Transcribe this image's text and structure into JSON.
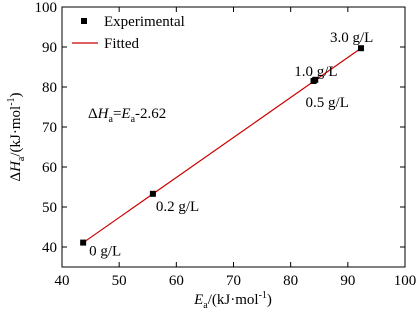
{
  "chart_data": {
    "type": "scatter",
    "xlabel": [
      "E",
      "a",
      "/(kJ·mol",
      "-1",
      ")"
    ],
    "ylabel": [
      "Δ",
      "H",
      "a",
      "/(kJ·mol",
      "-1",
      ")"
    ],
    "annotation": [
      "Δ",
      "H",
      "a",
      "=",
      "E",
      "a",
      "-2.62"
    ],
    "xlim": [
      40,
      100
    ],
    "ylim": [
      35,
      100
    ],
    "xticks": [
      40,
      50,
      60,
      70,
      80,
      90,
      100
    ],
    "yticks": [
      40,
      50,
      60,
      70,
      80,
      90,
      100
    ],
    "series": [
      {
        "name": "Experimental",
        "color": "#000000",
        "x": [
          43.7,
          55.9,
          84.0,
          84.3,
          92.3
        ],
        "values": [
          41.1,
          53.3,
          81.5,
          81.8,
          89.7
        ],
        "point_labels": [
          "0 g/L",
          "0.2 g/L",
          "0.5 g/L",
          "1.0 g/L",
          "3.0 g/L"
        ]
      },
      {
        "name": "Fitted",
        "color": "#cc0000",
        "type": "line",
        "x": [
          43.7,
          92.3
        ],
        "values": [
          41.08,
          89.68
        ]
      }
    ],
    "legend": "upper left"
  }
}
